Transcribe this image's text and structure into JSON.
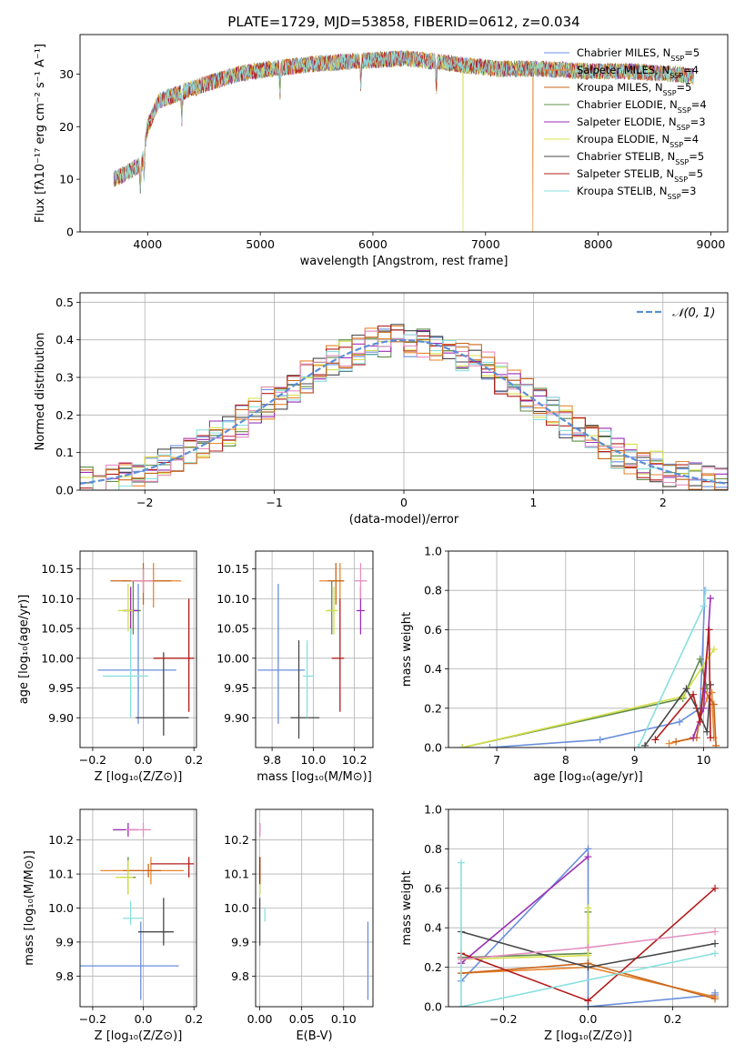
{
  "colors": {
    "c0": "#6a8fdc",
    "c1": "#e9862f",
    "c2": "#c9661a",
    "c3": "#5f8c4a",
    "c4": "#9a2fb5",
    "c5": "#d6e04a",
    "c6": "#474747",
    "c7": "#b31c1c",
    "c8": "#8adfe0",
    "c9": "#e48fbf",
    "gauss": "#5b8fd6"
  },
  "chart_data": [
    {
      "id": "spectrum",
      "type": "line",
      "title": "PLATE=1729, MJD=53858, FIBERID=0612, z=0.034",
      "xlabel": "wavelength [Angstrom, rest frame]",
      "ylabel": "Flux [fλ10⁻¹⁷ erg cm⁻² s⁻¹ A⁻¹]",
      "xlim": [
        3400,
        9150
      ],
      "ylim": [
        0,
        37.5
      ],
      "xticks": [
        4000,
        5000,
        6000,
        7000,
        8000,
        9000
      ],
      "yticks": [
        0,
        10,
        20,
        30
      ],
      "grid": false,
      "legend_position": "upper-right",
      "continuum_x": [
        3700,
        3800,
        3950,
        4000,
        4100,
        4300,
        4500,
        4800,
        5100,
        5500,
        5900,
        6300,
        6700,
        7100,
        7500,
        7900,
        8300,
        8700,
        8850
      ],
      "continuum_y": [
        10,
        11,
        13,
        20,
        25,
        26.5,
        28,
        30,
        31,
        32,
        32.5,
        33,
        32,
        31,
        31,
        30.5,
        30.5,
        30,
        29.5
      ],
      "absorption_lines": [
        3934,
        3969,
        4304,
        5175,
        5893,
        6563
      ],
      "series": [
        {
          "name": "Chabrier MILES, N",
          "sub": "SSP",
          "suffix": "=5"
        },
        {
          "name": "Salpeter MILES, N",
          "sub": "SSP",
          "suffix": "=4"
        },
        {
          "name": "Kroupa MILES, N",
          "sub": "SSP",
          "suffix": "=5"
        },
        {
          "name": "Chabrier ELODIE, N",
          "sub": "SSP",
          "suffix": "=4"
        },
        {
          "name": "Salpeter ELODIE, N",
          "sub": "SSP",
          "suffix": "=3"
        },
        {
          "name": "Kroupa ELODIE, N",
          "sub": "SSP",
          "suffix": "=4"
        },
        {
          "name": "Chabrier STELIB, N",
          "sub": "SSP",
          "suffix": "=5"
        },
        {
          "name": "Salpeter STELIB, N",
          "sub": "SSP",
          "suffix": "=5"
        },
        {
          "name": "Kroupa STELIB, N",
          "sub": "SSP",
          "suffix": "=3"
        }
      ]
    },
    {
      "id": "residuals",
      "type": "line",
      "xlabel": "(data-model)/error",
      "ylabel": "Normed distribution",
      "xlim": [
        -2.5,
        2.5
      ],
      "ylim": [
        0,
        0.525
      ],
      "xticks": [
        -2,
        -1,
        0,
        1,
        2
      ],
      "yticks": [
        0.0,
        0.1,
        0.2,
        0.3,
        0.4,
        0.5
      ],
      "grid": true,
      "legend_position": "upper-right",
      "gaussian_label": "𝒩(0, 1)",
      "bin_width": 0.1
    },
    {
      "id": "age_vs_Z",
      "type": "scatter",
      "xlabel": "Z [log₁₀(Z/Z⊙)]",
      "ylabel": "age  [log₁₀(age/yr)]",
      "xlim": [
        -0.25,
        0.21
      ],
      "ylim": [
        9.85,
        10.18
      ],
      "xticks": [
        -0.2,
        0.0,
        0.2
      ],
      "yticks": [
        9.9,
        9.95,
        10.0,
        10.05,
        10.1,
        10.15
      ],
      "grid": true,
      "points": [
        {
          "x": -0.02,
          "y": 9.98,
          "xerr": [
            0.16,
            0.15
          ],
          "yerr": [
            0.09,
            0.145
          ]
        },
        {
          "x": 0.04,
          "y": 10.13,
          "xerr": [
            0.12,
            0.11
          ],
          "yerr": [
            0.045,
            0.03
          ]
        },
        {
          "x": 0.0,
          "y": 10.13,
          "xerr": [
            0.13,
            0.11
          ],
          "yerr": [
            0.04,
            0.03
          ]
        },
        {
          "x": -0.04,
          "y": 10.08,
          "xerr": [
            0.04,
            0.03
          ],
          "yerr": [
            0.04,
            0.05
          ]
        },
        {
          "x": -0.05,
          "y": 10.08,
          "xerr": [
            0.03,
            0.03
          ],
          "yerr": [
            0.04,
            0.04
          ]
        },
        {
          "x": -0.06,
          "y": 10.08,
          "xerr": [
            0.04,
            0.02
          ],
          "yerr": [
            0.035,
            0.045
          ]
        },
        {
          "x": 0.08,
          "y": 9.9,
          "xerr": [
            0.11,
            0.1
          ],
          "yerr": [
            0.03,
            0.11
          ]
        },
        {
          "x": 0.18,
          "y": 10.0,
          "xerr": [
            0.14,
            0.02
          ],
          "yerr": [
            0.09,
            0.1
          ]
        },
        {
          "x": -0.05,
          "y": 9.97,
          "xerr": [
            0.11,
            0.07
          ],
          "yerr": [
            0.07,
            0.08
          ]
        },
        {
          "x": 0.0,
          "y": 10.13,
          "xerr": [
            0.05,
            0.04
          ],
          "yerr": [
            0.02,
            0.02
          ]
        }
      ]
    },
    {
      "id": "age_vs_mass",
      "type": "scatter",
      "xlabel": "mass [log₁₀(M/M⊙)]",
      "xlim": [
        9.72,
        10.29
      ],
      "ylim": [
        9.85,
        10.18
      ],
      "xticks": [
        9.8,
        10.0,
        10.2
      ],
      "yticks": [
        9.9,
        9.95,
        10.0,
        10.05,
        10.1,
        10.15
      ],
      "grid": true,
      "points": [
        {
          "x": 9.83,
          "y": 9.98,
          "xerr": [
            0.1,
            0.13
          ],
          "yerr": [
            0.09,
            0.145
          ]
        },
        {
          "x": 10.13,
          "y": 10.13,
          "xerr": [
            0.1,
            0.02
          ],
          "yerr": [
            0.03,
            0.03
          ]
        },
        {
          "x": 10.11,
          "y": 10.13,
          "xerr": [
            0.04,
            0.04
          ],
          "yerr": [
            0.04,
            0.03
          ]
        },
        {
          "x": 10.09,
          "y": 10.08,
          "xerr": [
            0.02,
            0.02
          ],
          "yerr": [
            0.04,
            0.05
          ]
        },
        {
          "x": 10.23,
          "y": 10.08,
          "xerr": [
            0.02,
            0.02
          ],
          "yerr": [
            0.04,
            0.04
          ]
        },
        {
          "x": 10.1,
          "y": 10.08,
          "xerr": [
            0.04,
            0.02
          ],
          "yerr": [
            0.04,
            0.04
          ]
        },
        {
          "x": 9.93,
          "y": 9.9,
          "xerr": [
            0.04,
            0.1
          ],
          "yerr": [
            0.035,
            0.13
          ]
        },
        {
          "x": 10.13,
          "y": 10.0,
          "xerr": [
            0.04,
            0.02
          ],
          "yerr": [
            0.09,
            0.1
          ]
        },
        {
          "x": 9.97,
          "y": 9.97,
          "xerr": [
            0.02,
            0.03
          ],
          "yerr": [
            0.07,
            0.06
          ]
        },
        {
          "x": 10.23,
          "y": 10.13,
          "xerr": [
            0.03,
            0.03
          ],
          "yerr": [
            0.03,
            0.03
          ]
        }
      ]
    },
    {
      "id": "weight_vs_age",
      "type": "line",
      "xlabel": "age  [log₁₀(age/yr)]",
      "ylabel": "mass weight",
      "xlim": [
        6.3,
        10.35
      ],
      "ylim": [
        0,
        1.0
      ],
      "xticks": [
        7,
        8,
        9,
        10
      ],
      "yticks": [
        0.0,
        0.2,
        0.4,
        0.6,
        0.8,
        1.0
      ],
      "grid": true,
      "series": [
        {
          "x": [
            6.9,
            8.5,
            9.65,
            9.95,
            10.02
          ],
          "y": [
            0.0,
            0.04,
            0.13,
            0.2,
            0.8
          ]
        },
        {
          "x": [
            9.5,
            9.85,
            10.05,
            10.12,
            10.15
          ],
          "y": [
            0.02,
            0.05,
            0.25,
            0.28,
            0.05
          ]
        },
        {
          "x": [
            9.6,
            9.9,
            10.0,
            10.15,
            10.18
          ],
          "y": [
            0.03,
            0.05,
            0.3,
            0.22,
            0.01
          ]
        },
        {
          "x": [
            6.5,
            9.7,
            9.95,
            10.05
          ],
          "y": [
            0.0,
            0.25,
            0.45,
            0.3
          ]
        },
        {
          "x": [
            9.85,
            10.0,
            10.1
          ],
          "y": [
            0.05,
            0.2,
            0.76
          ]
        },
        {
          "x": [
            6.5,
            9.7,
            10.15
          ],
          "y": [
            0.0,
            0.26,
            0.5
          ]
        },
        {
          "x": [
            9.15,
            9.75,
            9.9,
            10.05,
            10.1
          ],
          "y": [
            0.01,
            0.3,
            0.2,
            0.08,
            0.32
          ]
        },
        {
          "x": [
            9.3,
            9.85,
            9.95,
            10.08,
            10.1
          ],
          "y": [
            0.04,
            0.27,
            0.13,
            0.6,
            0.05
          ]
        },
        {
          "x": [
            9.05,
            10.0,
            10.03
          ],
          "y": [
            0.0,
            0.72,
            0.8
          ]
        }
      ]
    },
    {
      "id": "mass_vs_Z",
      "type": "scatter",
      "xlabel": "Z [log₁₀(Z/Z⊙)]",
      "ylabel": "mass [log₁₀(M/M⊙)]",
      "xlim": [
        -0.25,
        0.21
      ],
      "ylim": [
        9.71,
        10.29
      ],
      "xticks": [
        -0.2,
        0.0,
        0.2
      ],
      "yticks": [
        9.8,
        9.9,
        10.0,
        10.1,
        10.2
      ],
      "grid": true,
      "points": [
        {
          "x": -0.01,
          "y": 9.83,
          "xerr": [
            0.24,
            0.15
          ],
          "yerr": [
            0.1,
            0.13
          ]
        },
        {
          "x": 0.03,
          "y": 10.11,
          "xerr": [
            0.2,
            0.13
          ],
          "yerr": [
            0.04,
            0.04
          ]
        },
        {
          "x": 0.02,
          "y": 10.11,
          "xerr": [
            0.1,
            0.05
          ],
          "yerr": [
            0.02,
            0.02
          ]
        },
        {
          "x": -0.06,
          "y": 10.09,
          "xerr": [
            0.03,
            0.03
          ],
          "yerr": [
            0.05,
            0.06
          ]
        },
        {
          "x": -0.06,
          "y": 10.23,
          "xerr": [
            0.06,
            0.04
          ],
          "yerr": [
            0.02,
            0.02
          ]
        },
        {
          "x": -0.06,
          "y": 10.09,
          "xerr": [
            0.05,
            0.02
          ],
          "yerr": [
            0.05,
            0.05
          ]
        },
        {
          "x": 0.08,
          "y": 9.93,
          "xerr": [
            0.1,
            0.04
          ],
          "yerr": [
            0.04,
            0.1
          ]
        },
        {
          "x": 0.18,
          "y": 10.13,
          "xerr": [
            0.15,
            0.02
          ],
          "yerr": [
            0.04,
            0.02
          ]
        },
        {
          "x": -0.05,
          "y": 9.97,
          "xerr": [
            0.03,
            0.05
          ],
          "yerr": [
            0.02,
            0.05
          ]
        },
        {
          "x": 0.0,
          "y": 10.23,
          "xerr": [
            0.07,
            0.03
          ],
          "yerr": [
            0.02,
            0.02
          ]
        }
      ]
    },
    {
      "id": "mass_vs_ebv",
      "type": "scatter",
      "xlabel": "E(B-V)",
      "xlim": [
        -0.005,
        0.135
      ],
      "ylim": [
        9.71,
        10.29
      ],
      "xticks": [
        0.0,
        0.05,
        0.1
      ],
      "yticks": [
        9.8,
        9.9,
        10.0,
        10.1,
        10.2
      ],
      "grid": true,
      "points": [
        {
          "x": 0.129,
          "y": 9.83,
          "xerr": [
            0,
            0
          ],
          "yerr": [
            0.1,
            0.13
          ]
        },
        {
          "x": 0.0,
          "y": 10.11,
          "xerr": [
            0,
            0
          ],
          "yerr": [
            0.04,
            0.04
          ]
        },
        {
          "x": 0.0,
          "y": 10.11,
          "xerr": [
            0,
            0
          ],
          "yerr": [
            0.02,
            0.02
          ]
        },
        {
          "x": 0.0,
          "y": 10.09,
          "xerr": [
            0,
            0
          ],
          "yerr": [
            0.05,
            0.06
          ]
        },
        {
          "x": 0.0,
          "y": 10.23,
          "xerr": [
            0,
            0
          ],
          "yerr": [
            0.02,
            0.02
          ]
        },
        {
          "x": 0.0,
          "y": 10.09,
          "xerr": [
            0,
            0
          ],
          "yerr": [
            0.05,
            0.05
          ]
        },
        {
          "x": 0.0,
          "y": 9.93,
          "xerr": [
            0,
            0
          ],
          "yerr": [
            0.04,
            0.1
          ]
        },
        {
          "x": 0.0,
          "y": 10.11,
          "xerr": [
            0,
            0
          ],
          "yerr": [
            0.04,
            0.04
          ]
        },
        {
          "x": 0.006,
          "y": 9.98,
          "xerr": [
            0,
            0
          ],
          "yerr": [
            0.02,
            0.02
          ]
        },
        {
          "x": 0.0,
          "y": 10.23,
          "xerr": [
            0,
            0
          ],
          "yerr": [
            0.02,
            0.02
          ]
        }
      ]
    },
    {
      "id": "weight_vs_Z",
      "type": "line",
      "xlabel": "Z [log₁₀(Z/Z⊙)]",
      "ylabel": "mass weight",
      "xlim": [
        -0.33,
        0.33
      ],
      "ylim": [
        0,
        1.0
      ],
      "xticks": [
        -0.2,
        0.0,
        0.2
      ],
      "yticks": [
        0.0,
        0.2,
        0.4,
        0.6,
        0.8,
        1.0
      ],
      "grid": true,
      "series": [
        {
          "x": [
            -0.3,
            0.0,
            0.0,
            0.3,
            0.3
          ],
          "y": [
            0.13,
            0.8,
            0.0,
            0.06,
            0.07
          ]
        },
        {
          "x": [
            -0.3,
            0.0,
            0.3
          ],
          "y": [
            0.17,
            0.2,
            0.05
          ]
        },
        {
          "x": [
            -0.3,
            0.0,
            0.3
          ],
          "y": [
            0.17,
            0.22,
            0.04
          ]
        },
        {
          "x": [
            -0.3,
            0.0,
            0.0
          ],
          "y": [
            0.25,
            0.27,
            0.48
          ]
        },
        {
          "x": [
            -0.3,
            0.0
          ],
          "y": [
            0.22,
            0.76
          ]
        },
        {
          "x": [
            -0.3,
            0.0,
            0.0
          ],
          "y": [
            0.24,
            0.26,
            0.5
          ]
        },
        {
          "x": [
            -0.3,
            0.0,
            0.3
          ],
          "y": [
            0.38,
            0.2,
            0.32
          ]
        },
        {
          "x": [
            -0.3,
            0.0,
            0.3
          ],
          "y": [
            0.27,
            0.03,
            0.6
          ]
        },
        {
          "x": [
            -0.3,
            -0.3,
            0.3
          ],
          "y": [
            0.73,
            0.0,
            0.27
          ]
        },
        {
          "x": [
            -0.3,
            0.0,
            0.3
          ],
          "y": [
            0.24,
            0.3,
            0.38
          ]
        }
      ]
    }
  ]
}
